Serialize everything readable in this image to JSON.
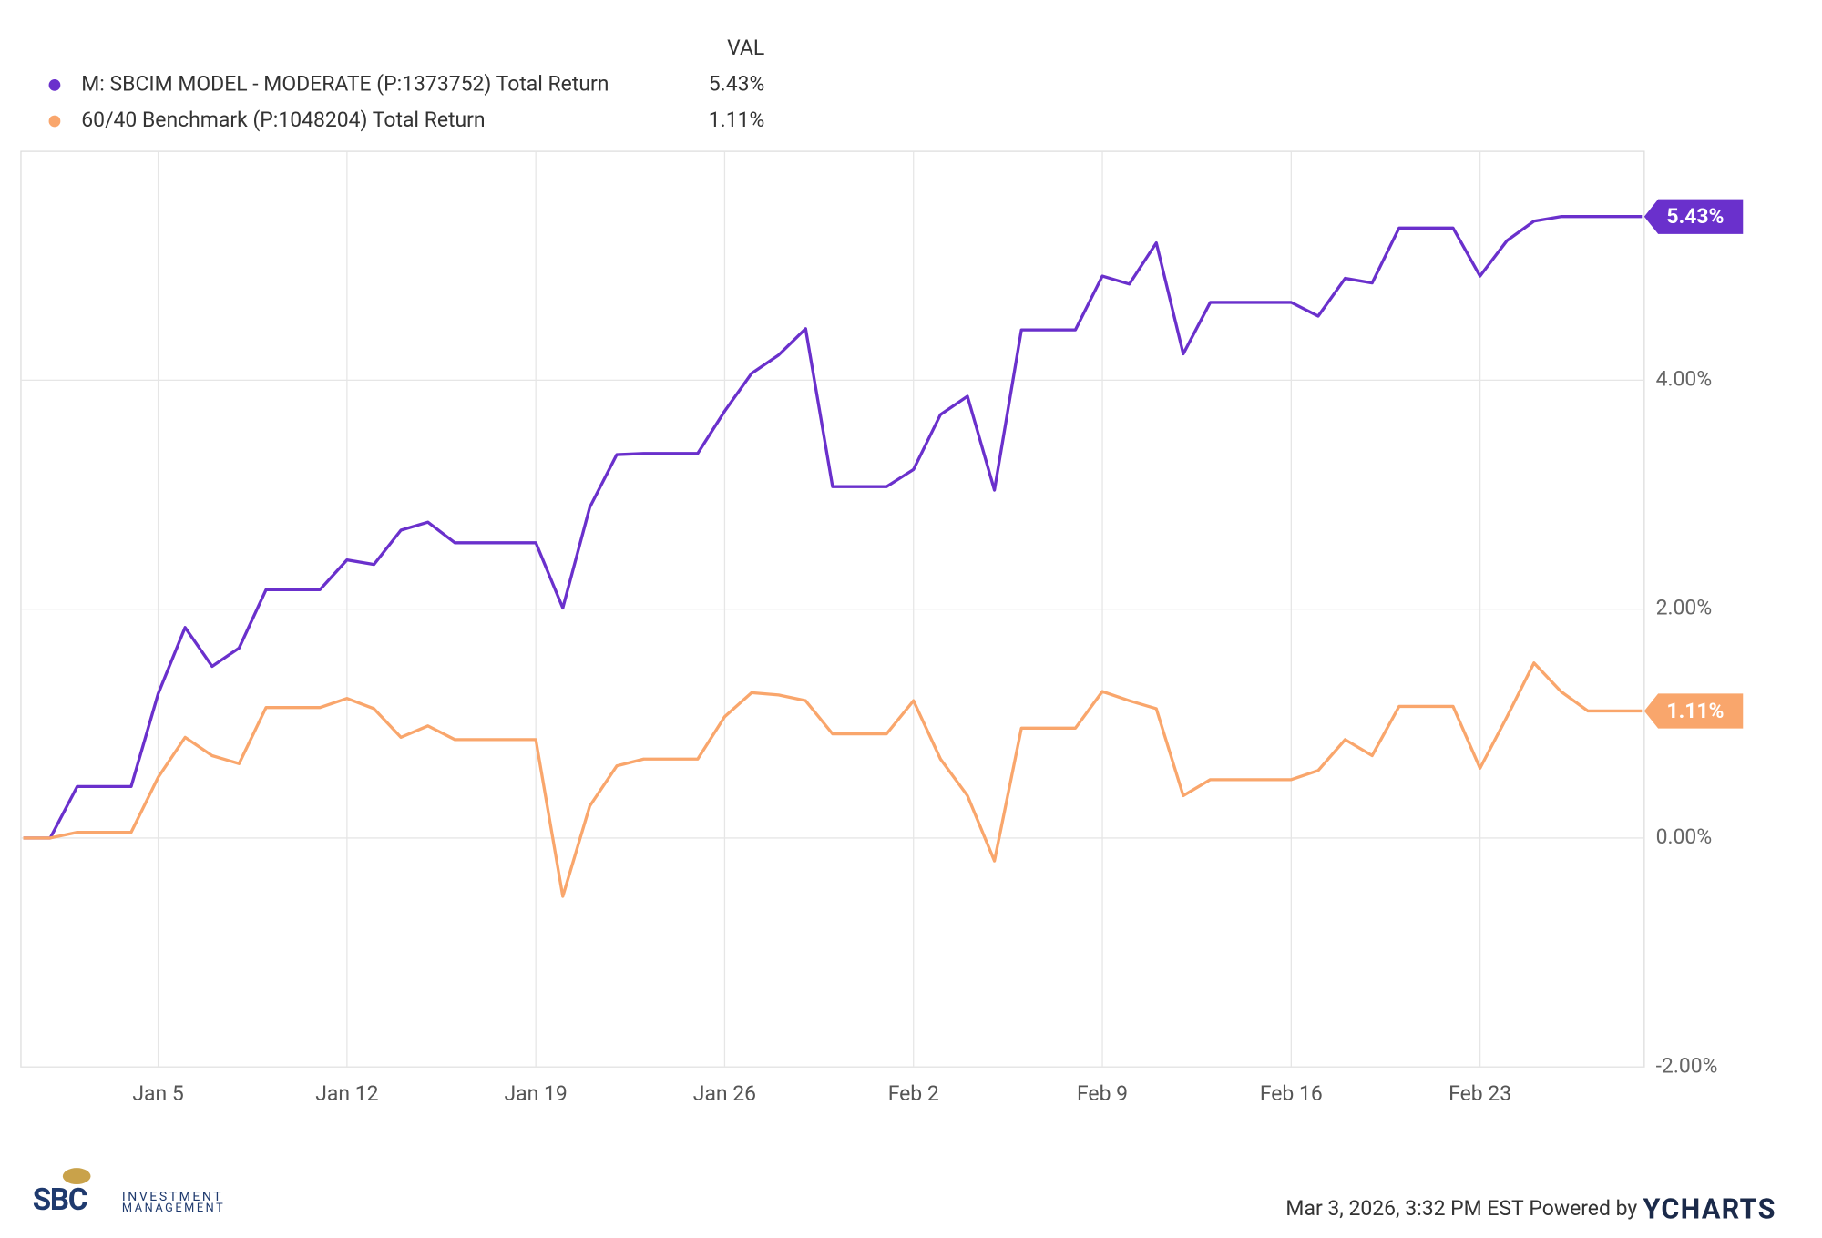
{
  "chart_data": {
    "type": "line",
    "legend_header": "VAL",
    "categories": [
      null,
      null,
      null,
      null,
      null,
      "Jan 5",
      null,
      null,
      null,
      null,
      null,
      null,
      "Jan 12",
      null,
      null,
      null,
      null,
      null,
      null,
      "Jan 19",
      null,
      null,
      null,
      null,
      null,
      null,
      "Jan 26",
      null,
      null,
      null,
      null,
      null,
      null,
      "Feb 2",
      null,
      null,
      null,
      null,
      null,
      null,
      "Feb 9",
      null,
      null,
      null,
      null,
      null,
      null,
      "Feb 16",
      null,
      null,
      null,
      null,
      null,
      null,
      "Feb 23",
      null,
      null,
      null,
      null,
      null,
      null
    ],
    "series": [
      {
        "name": "M: SBCIM MODEL - MODERATE (P:1373752) Total Return",
        "color": "#6a30cc",
        "values": [
          0,
          0,
          0.45,
          0.45,
          0.45,
          1.26,
          1.84,
          1.5,
          1.66,
          2.17,
          2.17,
          2.17,
          2.43,
          2.39,
          2.69,
          2.76,
          2.58,
          2.58,
          2.58,
          2.58,
          2.01,
          2.89,
          3.35,
          3.36,
          3.36,
          3.36,
          3.73,
          4.06,
          4.22,
          4.45,
          3.07,
          3.07,
          3.07,
          3.22,
          3.7,
          3.86,
          3.04,
          4.44,
          4.44,
          4.44,
          4.91,
          4.84,
          5.2,
          4.23,
          4.68,
          4.68,
          4.68,
          4.68,
          4.56,
          4.89,
          4.85,
          5.33,
          5.33,
          5.33,
          4.91,
          5.22,
          5.39,
          5.43,
          5.43,
          5.43,
          5.43
        ],
        "value_labels": [
          null,
          null,
          null,
          null,
          null,
          null,
          null,
          null,
          null,
          null,
          null,
          null,
          null,
          null,
          null,
          null,
          null,
          null,
          null,
          null,
          null,
          null,
          null,
          null,
          null,
          null,
          null,
          null,
          null,
          null,
          null,
          null,
          null,
          null,
          null,
          null,
          null,
          null,
          null,
          null,
          null,
          null,
          null,
          null,
          null,
          null,
          null,
          null,
          null,
          null,
          null,
          null,
          null,
          null,
          null,
          null,
          null,
          null,
          null,
          null,
          "5.43%"
        ]
      },
      {
        "name": "60/40 Benchmark (P:1048204) Total Return",
        "color": "#f9a66c",
        "values": [
          0,
          0,
          0.05,
          0.05,
          0.05,
          0.53,
          0.88,
          0.72,
          0.65,
          1.14,
          1.14,
          1.14,
          1.22,
          1.13,
          0.88,
          0.98,
          0.86,
          0.86,
          0.86,
          0.86,
          -0.51,
          0.28,
          0.63,
          0.69,
          0.69,
          0.69,
          1.06,
          1.27,
          1.25,
          1.2,
          0.91,
          0.91,
          0.91,
          1.2,
          0.69,
          0.37,
          -0.2,
          0.96,
          0.96,
          0.96,
          1.28,
          1.2,
          1.13,
          0.37,
          0.51,
          0.51,
          0.51,
          0.51,
          0.59,
          0.86,
          0.72,
          1.15,
          1.15,
          1.15,
          0.61,
          1.06,
          1.53,
          1.28,
          1.11,
          1.11,
          1.11
        ],
        "value_labels": [
          null,
          null,
          null,
          null,
          null,
          null,
          null,
          null,
          null,
          null,
          null,
          null,
          null,
          null,
          null,
          null,
          null,
          null,
          null,
          null,
          null,
          null,
          null,
          null,
          null,
          null,
          null,
          null,
          null,
          null,
          null,
          null,
          null,
          null,
          null,
          null,
          null,
          null,
          null,
          null,
          null,
          null,
          null,
          null,
          null,
          null,
          null,
          null,
          null,
          null,
          null,
          null,
          null,
          null,
          null,
          null,
          null,
          null,
          null,
          null,
          "1.11%"
        ]
      }
    ],
    "ylim": [
      -2,
      6
    ],
    "yticks": [
      {
        "value": -2,
        "label": "-2.00%"
      },
      {
        "value": 0,
        "label": "0.00%"
      },
      {
        "value": 2,
        "label": "2.00%"
      },
      {
        "value": 4,
        "label": "4.00%"
      }
    ],
    "grid": true
  },
  "footer": {
    "timestamp": "Mar 3, 2026, 3:32 PM EST",
    "powered_by": "Powered by",
    "brand": "YCHARTS",
    "logo": {
      "name": "SBC",
      "line1": "INVESTMENT",
      "line2": "MANAGEMENT"
    }
  }
}
